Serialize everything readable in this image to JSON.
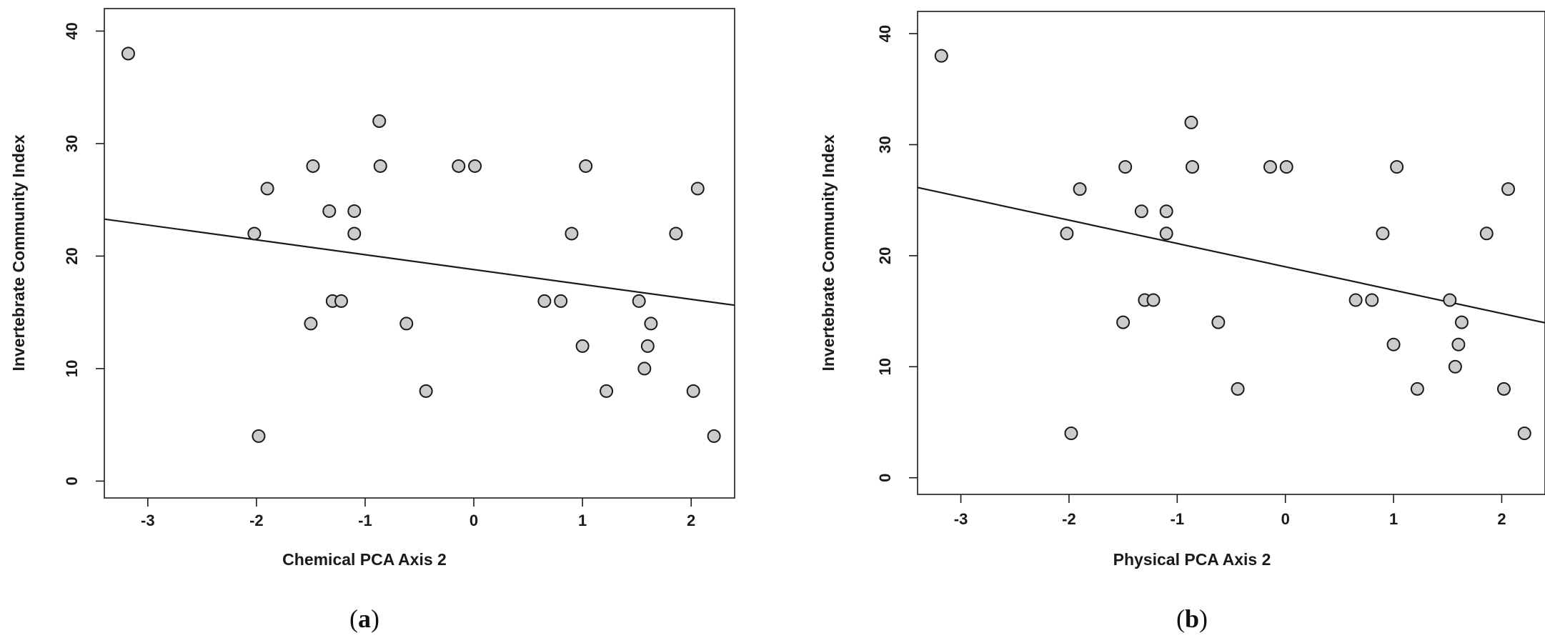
{
  "colors": {
    "point_fill": "#cccccc",
    "point_stroke": "#1a1a1a",
    "line": "#1a1a1a",
    "axis": "#1a1a1a"
  },
  "chart_data": [
    {
      "type": "scatter",
      "panel_label": "a",
      "xlabel": "Chemical PCA Axis 2",
      "ylabel": "Invertebrate Community Index",
      "xlim": [
        -3.4,
        2.4
      ],
      "ylim": [
        -1.5,
        42
      ],
      "xticks": [
        -3,
        -2,
        -1,
        0,
        1,
        2
      ],
      "yticks": [
        0,
        10,
        20,
        30,
        40
      ],
      "points": [
        {
          "x": -3.18,
          "y": 38
        },
        {
          "x": -2.02,
          "y": 22
        },
        {
          "x": -1.98,
          "y": 4
        },
        {
          "x": -1.9,
          "y": 26
        },
        {
          "x": -1.48,
          "y": 28
        },
        {
          "x": -1.5,
          "y": 14
        },
        {
          "x": -1.33,
          "y": 24
        },
        {
          "x": -1.3,
          "y": 16
        },
        {
          "x": -1.22,
          "y": 16
        },
        {
          "x": -1.1,
          "y": 24
        },
        {
          "x": -1.1,
          "y": 22
        },
        {
          "x": -0.87,
          "y": 32
        },
        {
          "x": -0.86,
          "y": 28
        },
        {
          "x": -0.62,
          "y": 14
        },
        {
          "x": -0.44,
          "y": 8
        },
        {
          "x": -0.14,
          "y": 28
        },
        {
          "x": 0.01,
          "y": 28
        },
        {
          "x": 0.65,
          "y": 16
        },
        {
          "x": 0.8,
          "y": 16
        },
        {
          "x": 0.9,
          "y": 22
        },
        {
          "x": 1.0,
          "y": 12
        },
        {
          "x": 1.03,
          "y": 28
        },
        {
          "x": 1.22,
          "y": 8
        },
        {
          "x": 1.52,
          "y": 16
        },
        {
          "x": 1.57,
          "y": 10
        },
        {
          "x": 1.6,
          "y": 12
        },
        {
          "x": 1.63,
          "y": 14
        },
        {
          "x": 1.86,
          "y": 22
        },
        {
          "x": 2.02,
          "y": 8
        },
        {
          "x": 2.06,
          "y": 26
        },
        {
          "x": 2.21,
          "y": 4
        }
      ],
      "fit_line": {
        "intercept": 18.8,
        "slope": -1.32
      }
    },
    {
      "type": "scatter",
      "panel_label": "b",
      "xlabel": "Physical PCA Axis 2",
      "ylabel": "Invertebrate Community Index",
      "xlim": [
        -3.4,
        2.4
      ],
      "ylim": [
        -1.5,
        42
      ],
      "xticks": [
        -3,
        -2,
        -1,
        0,
        1,
        2
      ],
      "yticks": [
        0,
        10,
        20,
        30,
        40
      ],
      "points": [
        {
          "x": -3.18,
          "y": 38
        },
        {
          "x": -2.02,
          "y": 22
        },
        {
          "x": -1.98,
          "y": 4
        },
        {
          "x": -1.9,
          "y": 26
        },
        {
          "x": -1.48,
          "y": 28
        },
        {
          "x": -1.5,
          "y": 14
        },
        {
          "x": -1.33,
          "y": 24
        },
        {
          "x": -1.3,
          "y": 16
        },
        {
          "x": -1.22,
          "y": 16
        },
        {
          "x": -1.1,
          "y": 24
        },
        {
          "x": -1.1,
          "y": 22
        },
        {
          "x": -0.87,
          "y": 32
        },
        {
          "x": -0.86,
          "y": 28
        },
        {
          "x": -0.62,
          "y": 14
        },
        {
          "x": -0.44,
          "y": 8
        },
        {
          "x": -0.14,
          "y": 28
        },
        {
          "x": 0.01,
          "y": 28
        },
        {
          "x": 0.65,
          "y": 16
        },
        {
          "x": 0.8,
          "y": 16
        },
        {
          "x": 0.9,
          "y": 22
        },
        {
          "x": 1.0,
          "y": 12
        },
        {
          "x": 1.03,
          "y": 28
        },
        {
          "x": 1.22,
          "y": 8
        },
        {
          "x": 1.52,
          "y": 16
        },
        {
          "x": 1.57,
          "y": 10
        },
        {
          "x": 1.6,
          "y": 12
        },
        {
          "x": 1.63,
          "y": 14
        },
        {
          "x": 1.86,
          "y": 22
        },
        {
          "x": 2.02,
          "y": 8
        },
        {
          "x": 2.06,
          "y": 26
        },
        {
          "x": 2.21,
          "y": 4
        }
      ],
      "fit_line": {
        "intercept": 19.0,
        "slope": -2.1
      }
    }
  ]
}
